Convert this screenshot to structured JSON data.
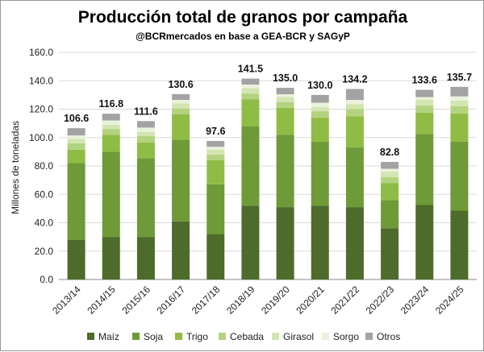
{
  "chart_data": {
    "type": "bar",
    "stacked": true,
    "title": "Producción total de granos por campaña",
    "subtitle": "@BCRmercados en base a GEA-BCR y SAGyP",
    "ylabel": "Millones de toneladas",
    "xlabel": "",
    "ylim": [
      0,
      160
    ],
    "yticks": [
      "0.0",
      "20.0",
      "40.0",
      "60.0",
      "80.0",
      "100.0",
      "120.0",
      "140.0",
      "160.0"
    ],
    "grid": true,
    "legend_position": "bottom",
    "categories": [
      "2013/14",
      "2014/15",
      "2015/16",
      "2016/17",
      "2017/18",
      "2018/19",
      "2019/20",
      "2020/21",
      "2021/22",
      "2022/23",
      "2023/24",
      "2024/25"
    ],
    "totals": [
      "106.6",
      "116.8",
      "111.6",
      "130.6",
      "97.6",
      "141.5",
      "135.0",
      "130.0",
      "134.2",
      "82.8",
      "133.6",
      "135.7"
    ],
    "series": [
      {
        "name": "Maíz",
        "color": "#4d6b2a",
        "values": [
          28.0,
          30.0,
          30.0,
          41.0,
          32.0,
          52.0,
          51.0,
          52.0,
          51.0,
          36.0,
          52.5,
          48.5
        ]
      },
      {
        "name": "Soja",
        "color": "#6e9a37",
        "values": [
          54.0,
          60.0,
          55.5,
          57.5,
          35.0,
          56.0,
          51.0,
          45.0,
          42.0,
          20.0,
          50.0,
          48.5
        ]
      },
      {
        "name": "Trigo",
        "color": "#8fbc45",
        "values": [
          9.5,
          12.0,
          11.0,
          18.0,
          17.0,
          19.0,
          19.0,
          17.0,
          22.0,
          12.0,
          15.0,
          20.0
        ]
      },
      {
        "name": "Cebada",
        "color": "#b3d37f",
        "values": [
          4.5,
          4.0,
          4.5,
          4.0,
          4.0,
          4.0,
          4.0,
          4.5,
          5.0,
          4.0,
          5.0,
          5.0
        ]
      },
      {
        "name": "Girasol",
        "color": "#d3e5b0",
        "values": [
          3.0,
          3.0,
          3.0,
          3.5,
          3.5,
          3.8,
          3.5,
          3.0,
          3.5,
          4.0,
          4.0,
          4.0
        ]
      },
      {
        "name": "Sorgo",
        "color": "#eaf2db",
        "values": [
          2.5,
          3.0,
          3.0,
          2.5,
          2.0,
          2.5,
          2.0,
          3.0,
          3.0,
          2.0,
          2.0,
          3.0
        ]
      },
      {
        "name": "Otros",
        "color": "#a3a3a3",
        "values": [
          5.1,
          4.8,
          4.6,
          4.1,
          4.1,
          4.2,
          4.5,
          5.5,
          7.7,
          4.8,
          5.1,
          6.7
        ]
      }
    ]
  }
}
